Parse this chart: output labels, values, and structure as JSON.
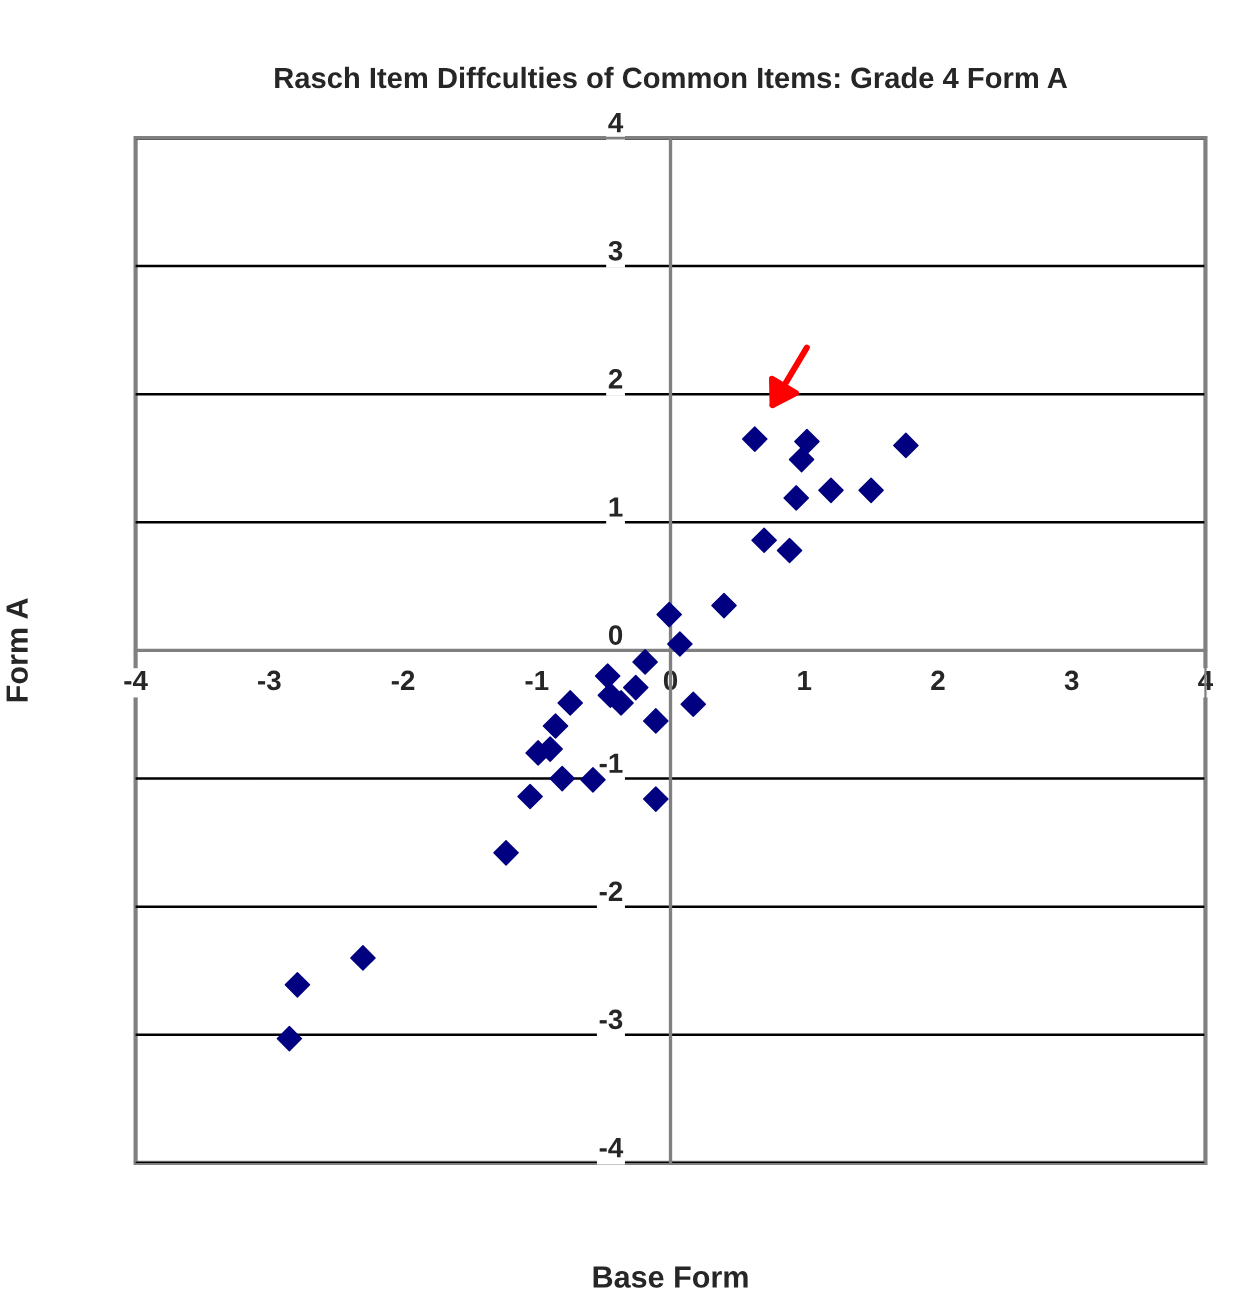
{
  "chart_data": {
    "type": "scatter",
    "title": "Rasch Item Diffculties of Common Items: Grade 4 Form A",
    "xlabel": "Base Form",
    "ylabel": "Form A",
    "x": [
      0.63,
      1.02,
      0.98,
      1.76,
      0.94,
      1.2,
      1.5,
      0.7,
      0.89,
      0.4,
      -0.01,
      0.07,
      -0.19,
      -0.47,
      -0.45,
      -0.37,
      -0.26,
      0.17,
      -0.11,
      -0.75,
      -0.86,
      -0.99,
      -0.9,
      -0.81,
      -0.58,
      -1.05,
      -0.11,
      -1.23,
      -2.3,
      -2.79,
      -2.85
    ],
    "values": [
      1.65,
      1.63,
      1.49,
      1.6,
      1.19,
      1.25,
      1.25,
      0.86,
      0.78,
      0.35,
      0.28,
      0.05,
      -0.09,
      -0.2,
      -0.35,
      -0.41,
      -0.29,
      -0.42,
      -0.55,
      -0.41,
      -0.59,
      -0.8,
      -0.77,
      -1.0,
      -1.01,
      -1.14,
      -1.16,
      -1.58,
      -2.4,
      -2.61,
      -3.03
    ],
    "color": "#000080",
    "marker": "diamond",
    "xlim": [
      -4,
      4
    ],
    "xticks": [
      -4,
      -3,
      -2,
      -1,
      0,
      1,
      2,
      3,
      4
    ],
    "ylim": [
      -4,
      4
    ],
    "yticks": [
      -4,
      -3,
      -2,
      -1,
      0,
      1,
      2,
      3,
      4
    ],
    "grid": "y",
    "legend": false
  }
}
